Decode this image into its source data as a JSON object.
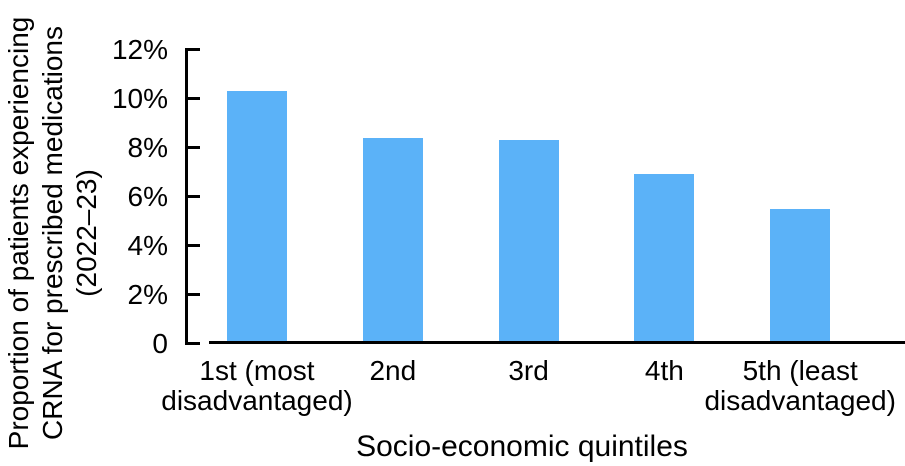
{
  "chart_data": {
    "type": "bar",
    "title": "",
    "categories": [
      "1st (most\ndisadvantaged)",
      "2nd",
      "3rd",
      "4th",
      "5th (least\ndisadvantaged)"
    ],
    "values": [
      10.2,
      8.3,
      8.2,
      6.8,
      5.4
    ],
    "xlabel": "Socio-economic quintiles",
    "ylabel": "Proportion of patients experiencing CRNA for prescribed medications (2022–23)",
    "ylabel_lines": [
      "Proportion of patients experiencing",
      "CRNA for prescribed medications",
      "(2022–23)"
    ],
    "y_ticks": [
      "12%",
      "10%",
      "8%",
      "6%",
      "4%",
      "2%",
      "0"
    ],
    "y_tick_values": [
      12,
      10,
      8,
      6,
      4,
      2,
      0
    ],
    "ylim": [
      0,
      12
    ],
    "grid": false,
    "legend": null,
    "bar_color": "#5BB2F8",
    "axis_color": "#000000",
    "text_color": "#000000"
  }
}
